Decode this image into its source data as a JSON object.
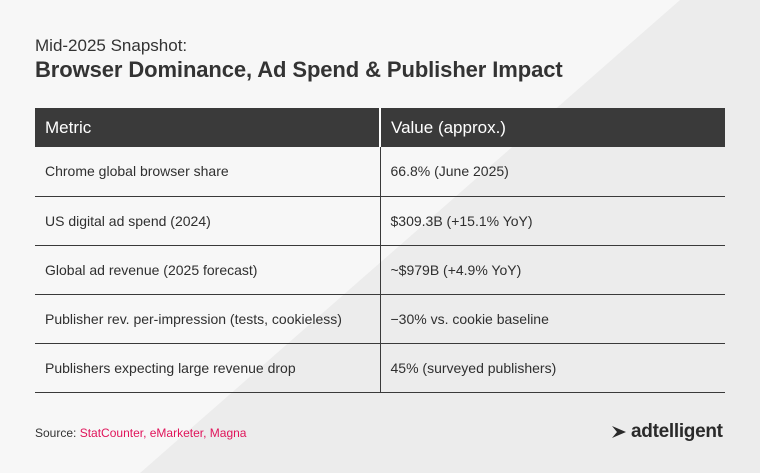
{
  "header": {
    "subtitle": "Mid-2025 Snapshot:",
    "title": "Browser Dominance, Ad Spend & Publisher Impact"
  },
  "table": {
    "columns": [
      "Metric",
      "Value (approx.)"
    ],
    "rows": [
      {
        "metric": "Chrome global browser share",
        "value": "66.8% (June 2025)"
      },
      {
        "metric": "US digital ad spend (2024)",
        "value": "$309.3B (+15.1% YoY)"
      },
      {
        "metric": "Global ad revenue (2025 forecast)",
        "value": "~$979B (+4.9% YoY)"
      },
      {
        "metric": "Publisher rev. per-impression (tests, cookieless)",
        "value": "−30% vs. cookie baseline"
      },
      {
        "metric": "Publishers expecting large revenue drop",
        "value": "45% (surveyed publishers)"
      }
    ]
  },
  "footer": {
    "source_label": "Source:",
    "source_list": "StatCounter, eMarketer, Magna",
    "brand": "adtelligent"
  },
  "colors": {
    "header_bg": "#3a3a3a",
    "accent": "#e0145a",
    "background": "#f1f1f1"
  },
  "icons": {
    "brand_mark": "adtelligent-logo-icon"
  }
}
